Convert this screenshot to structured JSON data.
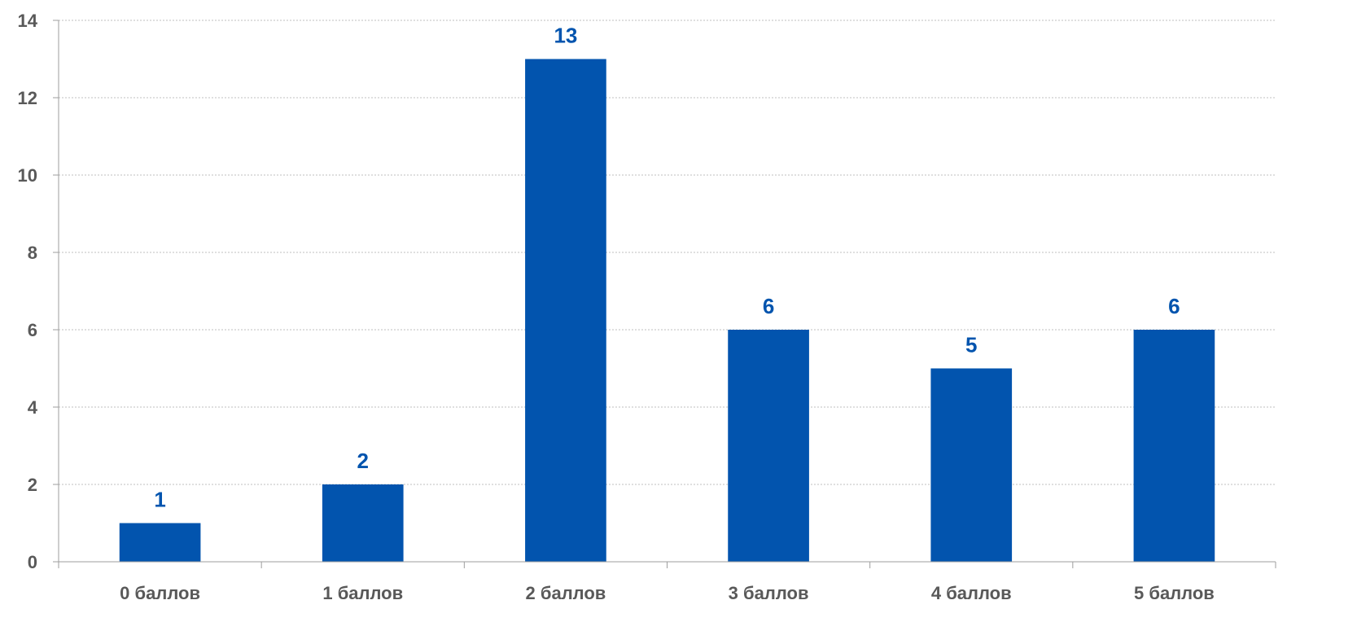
{
  "chart_data": {
    "type": "bar",
    "title": "",
    "xlabel": "",
    "ylabel": "",
    "categories": [
      "0 баллов",
      "1 баллов",
      "2 баллов",
      "3 баллов",
      "4 баллов",
      "5 баллов"
    ],
    "values": [
      1,
      2,
      13,
      6,
      5,
      6
    ],
    "data_labels": [
      "1",
      "2",
      "13",
      "6",
      "5",
      "6"
    ],
    "ylim": [
      0,
      14
    ],
    "yticks": [
      0,
      2,
      4,
      6,
      8,
      10,
      12,
      14
    ],
    "ytick_labels": [
      "0",
      "2",
      "4",
      "6",
      "8",
      "10",
      "12",
      "14"
    ],
    "grid": true,
    "legend": "none",
    "colors": {
      "bar": "#0254AE",
      "data_label": "#0254AE",
      "tick_label": "#595959",
      "grid": "#BFBFBF",
      "axis": "#9E9E9E"
    }
  }
}
